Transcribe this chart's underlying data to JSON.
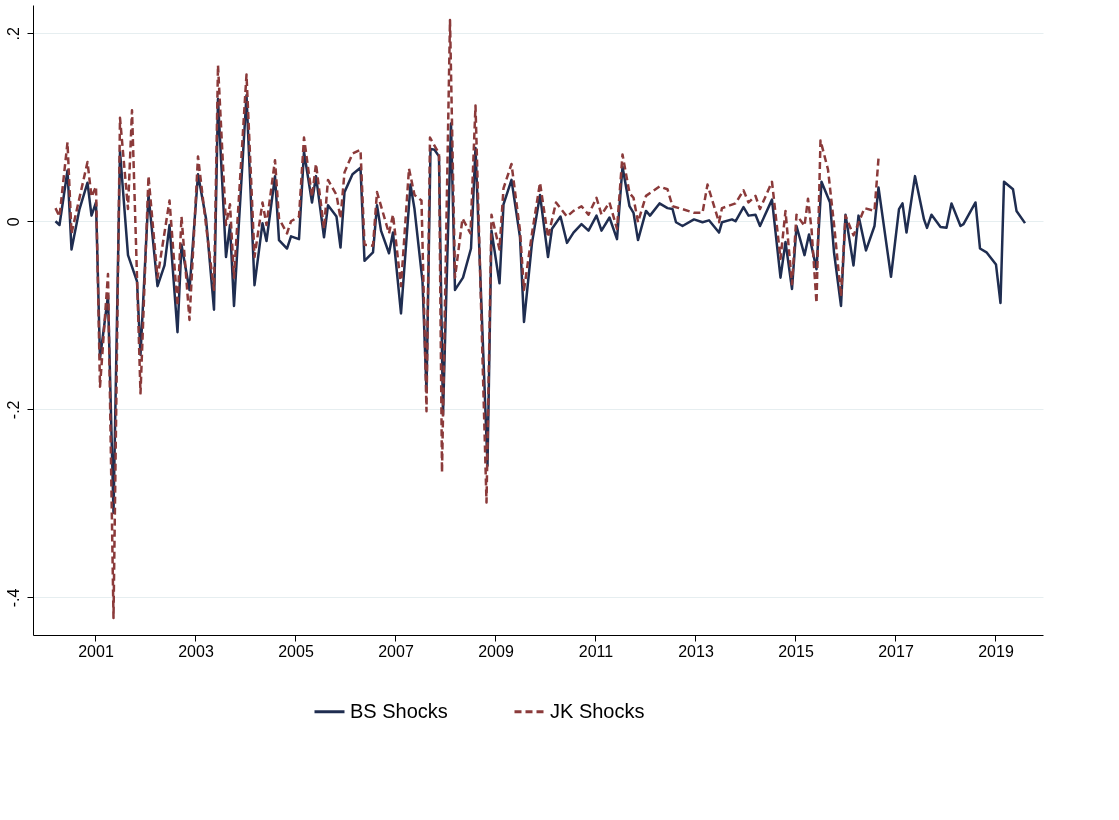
{
  "chart_data": {
    "type": "line",
    "xlim": [
      1999.75,
      2019.95
    ],
    "ylim": [
      -0.44,
      0.23
    ],
    "xticks": [
      2001,
      2003,
      2005,
      2007,
      2009,
      2011,
      2013,
      2015,
      2017,
      2019
    ],
    "yticks": [
      {
        "value": 0.2,
        "label": ".2"
      },
      {
        "value": 0,
        "label": "0"
      },
      {
        "value": -0.2,
        "label": "-.2"
      },
      {
        "value": -0.4,
        "label": "-.4"
      }
    ],
    "grid": "y",
    "legend": "bottom",
    "series": [
      {
        "name": "BS Shocks",
        "color": "#1f2d50",
        "line_style": "solid",
        "x": [
          2000.2,
          2000.28,
          2000.44,
          2000.52,
          2000.68,
          2000.84,
          2000.92,
          2001.01,
          2001.09,
          2001.25,
          2001.36,
          2001.49,
          2001.65,
          2001.83,
          2001.9,
          2002.06,
          2002.24,
          2002.38,
          2002.48,
          2002.64,
          2002.72,
          2002.88,
          2003.05,
          2003.21,
          2003.37,
          2003.45,
          2003.61,
          2003.69,
          2003.77,
          2004.02,
          2004.18,
          2004.34,
          2004.42,
          2004.59,
          2004.67,
          2004.83,
          2004.91,
          2005.07,
          2005.17,
          2005.33,
          2005.41,
          2005.57,
          2005.65,
          2005.82,
          2005.9,
          2005.98,
          2006.14,
          2006.3,
          2006.38,
          2006.55,
          2006.63,
          2006.71,
          2006.87,
          2006.95,
          2007.11,
          2007.3,
          2007.38,
          2007.54,
          2007.62,
          2007.7,
          2007.78,
          2007.87,
          2007.95,
          2008.11,
          2008.19,
          2008.35,
          2008.51,
          2008.6,
          2008.84,
          2008.92,
          2009.08,
          2009.16,
          2009.32,
          2009.49,
          2009.57,
          2009.73,
          2009.89,
          2010.05,
          2010.13,
          2010.3,
          2010.43,
          2010.56,
          2010.72,
          2010.86,
          2011.02,
          2011.12,
          2011.28,
          2011.43,
          2011.54,
          2011.68,
          2011.76,
          2011.85,
          2012.01,
          2012.09,
          2012.28,
          2012.44,
          2012.54,
          2012.61,
          2012.74,
          2012.97,
          2013.14,
          2013.27,
          2013.47,
          2013.53,
          2013.73,
          2013.8,
          2013.96,
          2014.06,
          2014.2,
          2014.29,
          2014.53,
          2014.7,
          2014.8,
          2014.93,
          2015.02,
          2015.18,
          2015.27,
          2015.42,
          2015.52,
          2015.69,
          2015.77,
          2015.91,
          2016.0,
          2016.16,
          2016.26,
          2016.41,
          2016.58,
          2016.66,
          2016.91,
          2017.07,
          2017.14,
          2017.22,
          2017.39,
          2017.57,
          2017.63,
          2017.72,
          2017.9,
          2018.02,
          2018.12,
          2018.3,
          2018.36,
          2018.6,
          2018.69,
          2018.82,
          2019.01,
          2019.1,
          2019.17,
          2019.35,
          2019.42,
          2019.59
        ],
        "values": [
          0.0,
          -0.004,
          0.054,
          -0.03,
          0.013,
          0.041,
          0.006,
          0.02,
          -0.146,
          -0.079,
          -0.31,
          0.074,
          -0.036,
          -0.064,
          -0.142,
          0.028,
          -0.069,
          -0.047,
          -0.004,
          -0.118,
          -0.025,
          -0.073,
          0.05,
          0.003,
          -0.094,
          0.13,
          -0.038,
          -0.004,
          -0.09,
          0.134,
          -0.068,
          -0.002,
          -0.021,
          0.048,
          -0.02,
          -0.029,
          -0.016,
          -0.019,
          0.074,
          0.02,
          0.048,
          -0.017,
          0.017,
          0.005,
          -0.028,
          0.031,
          0.05,
          0.057,
          -0.042,
          -0.033,
          0.017,
          -0.01,
          -0.034,
          -0.012,
          -0.098,
          0.039,
          0.013,
          -0.064,
          -0.181,
          0.077,
          0.076,
          0.069,
          -0.206,
          0.104,
          -0.073,
          -0.06,
          -0.029,
          0.078,
          -0.26,
          -0.01,
          -0.066,
          0.018,
          0.044,
          -0.017,
          -0.107,
          -0.023,
          0.028,
          -0.038,
          -0.008,
          0.005,
          -0.023,
          -0.012,
          -0.003,
          -0.01,
          0.006,
          -0.01,
          0.004,
          -0.019,
          0.058,
          0.016,
          0.009,
          -0.02,
          0.011,
          0.006,
          0.019,
          0.014,
          0.013,
          -0.001,
          -0.005,
          0.002,
          -0.001,
          0.001,
          -0.012,
          -0.001,
          0.002,
          0.0,
          0.015,
          0.006,
          0.007,
          -0.005,
          0.023,
          -0.06,
          -0.022,
          -0.072,
          -0.005,
          -0.036,
          -0.014,
          -0.051,
          0.042,
          0.02,
          -0.033,
          -0.09,
          0.007,
          -0.047,
          0.006,
          -0.031,
          -0.005,
          0.036,
          -0.059,
          0.013,
          0.019,
          -0.012,
          0.048,
          0.002,
          -0.007,
          0.007,
          -0.006,
          -0.007,
          0.019,
          -0.005,
          -0.003,
          0.02,
          -0.029,
          -0.033,
          -0.046,
          -0.087,
          0.042,
          0.034,
          0.011,
          -0.002
        ]
      },
      {
        "name": "JK Shocks",
        "color": "#8b3a3a",
        "line_style": "dashed",
        "x": [
          2000.2,
          2000.28,
          2000.44,
          2000.52,
          2000.84,
          2000.92,
          2001.01,
          2001.09,
          2001.25,
          2001.36,
          2001.49,
          2001.65,
          2001.73,
          2001.9,
          2002.06,
          2002.24,
          2002.48,
          2002.64,
          2002.72,
          2002.88,
          2003.05,
          2003.21,
          2003.37,
          2003.45,
          2003.61,
          2003.69,
          2003.77,
          2004.02,
          2004.18,
          2004.34,
          2004.42,
          2004.59,
          2004.67,
          2004.83,
          2004.91,
          2005.07,
          2005.17,
          2005.33,
          2005.41,
          2005.57,
          2005.65,
          2005.82,
          2005.9,
          2005.98,
          2006.14,
          2006.3,
          2006.38,
          2006.55,
          2006.63,
          2006.87,
          2006.95,
          2007.11,
          2007.27,
          2007.38,
          2007.52,
          2007.62,
          2007.69,
          2007.87,
          2007.93,
          2008.09,
          2008.19,
          2008.34,
          2008.5,
          2008.6,
          2008.82,
          2008.92,
          2009.08,
          2009.16,
          2009.32,
          2009.49,
          2009.57,
          2009.73,
          2009.89,
          2010.05,
          2010.21,
          2010.43,
          2010.56,
          2010.72,
          2010.86,
          2011.02,
          2011.12,
          2011.28,
          2011.43,
          2011.54,
          2011.68,
          2011.76,
          2011.85,
          2012.01,
          2012.28,
          2012.44,
          2012.54,
          2012.74,
          2012.97,
          2013.14,
          2013.24,
          2013.47,
          2013.53,
          2013.8,
          2013.96,
          2014.06,
          2014.2,
          2014.29,
          2014.53,
          2014.7,
          2014.8,
          2014.93,
          2015.02,
          2015.18,
          2015.25,
          2015.32,
          2015.42,
          2015.5,
          2015.65,
          2015.78,
          2015.91,
          2016.0,
          2016.16,
          2016.38,
          2016.58,
          2016.66
        ],
        "values": [
          0.014,
          0.005,
          0.084,
          -0.013,
          0.063,
          0.026,
          0.037,
          -0.176,
          -0.056,
          -0.422,
          0.11,
          0.013,
          0.118,
          -0.183,
          0.048,
          -0.06,
          0.022,
          -0.09,
          0.005,
          -0.105,
          0.069,
          -0.004,
          -0.073,
          0.166,
          -0.004,
          0.018,
          -0.06,
          0.156,
          -0.038,
          0.02,
          -0.004,
          0.065,
          0.003,
          -0.013,
          0.0,
          0.005,
          0.089,
          0.026,
          0.061,
          -0.008,
          0.044,
          0.028,
          0.003,
          0.052,
          0.072,
          0.076,
          -0.025,
          -0.026,
          0.031,
          -0.013,
          0.007,
          -0.069,
          0.056,
          0.028,
          0.022,
          -0.202,
          0.089,
          0.072,
          -0.267,
          0.214,
          -0.06,
          0.003,
          -0.013,
          0.123,
          -0.299,
          0.007,
          -0.03,
          0.035,
          0.061,
          -0.01,
          -0.073,
          -0.013,
          0.041,
          -0.017,
          0.02,
          0.005,
          0.011,
          0.016,
          0.007,
          0.025,
          0.007,
          0.02,
          -0.008,
          0.071,
          0.03,
          0.025,
          -0.001,
          0.027,
          0.037,
          0.034,
          0.016,
          0.013,
          0.009,
          0.009,
          0.039,
          -0.001,
          0.014,
          0.019,
          0.033,
          0.02,
          0.027,
          0.013,
          0.042,
          -0.04,
          0.011,
          -0.067,
          0.007,
          -0.005,
          0.024,
          -0.008,
          -0.087,
          0.086,
          0.055,
          -0.008,
          -0.08,
          0.006,
          -0.015,
          0.014,
          0.011,
          0.067
        ]
      }
    ]
  }
}
